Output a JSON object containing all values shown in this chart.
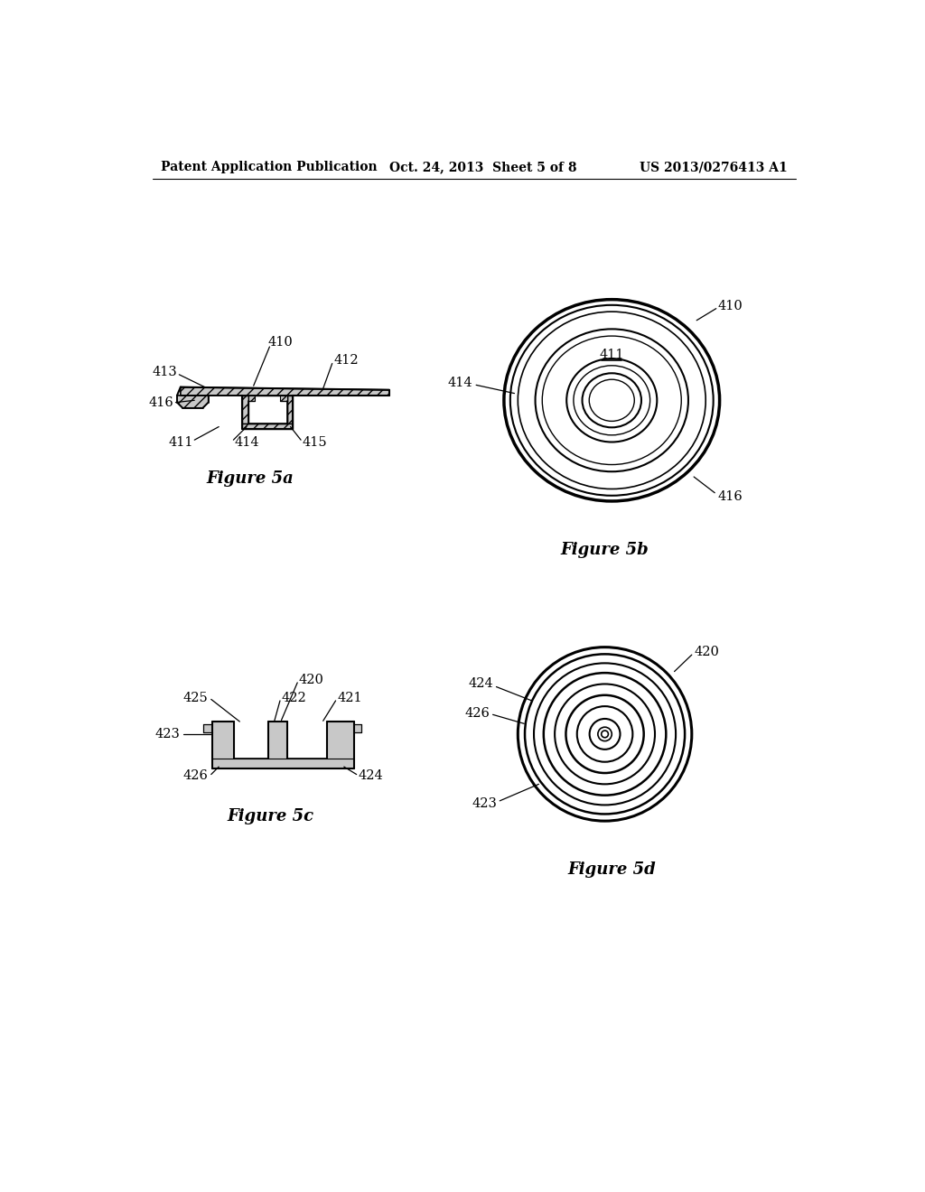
{
  "bg_color": "#ffffff",
  "header_left": "Patent Application Publication",
  "header_center": "Oct. 24, 2013  Sheet 5 of 8",
  "header_right": "US 2013/0276413 A1",
  "fig5a_caption": "Figure 5a",
  "fig5b_caption": "Figure 5b",
  "fig5c_caption": "Figure 5c",
  "fig5d_caption": "Figure 5d",
  "line_color": "#000000"
}
